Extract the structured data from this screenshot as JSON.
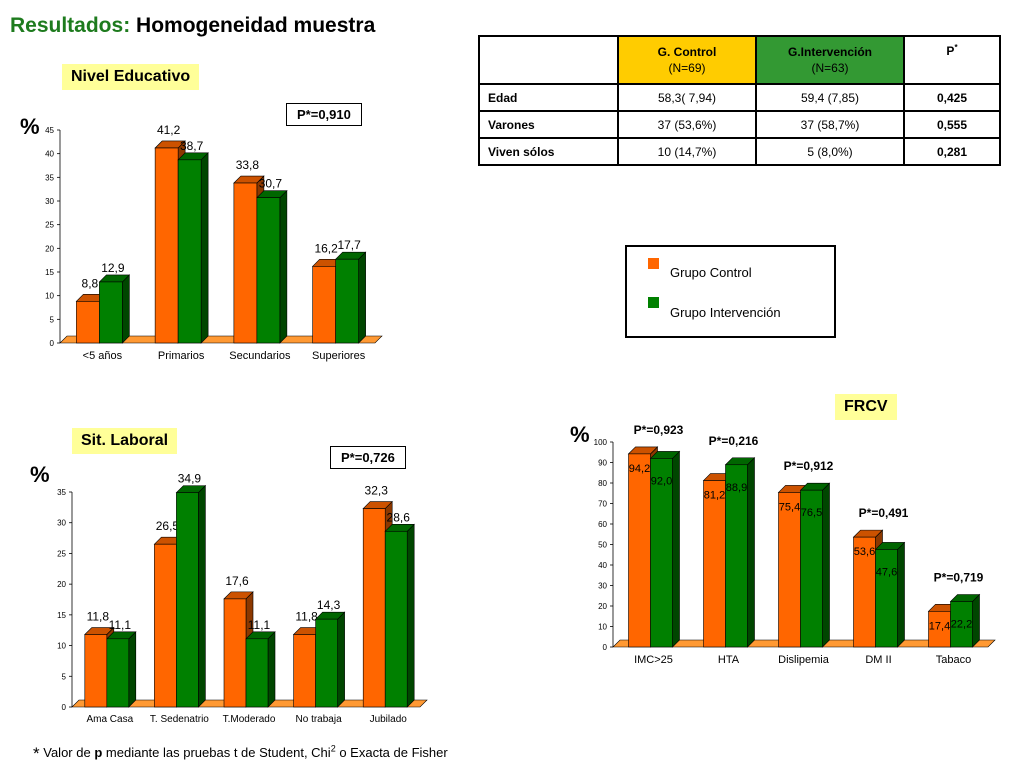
{
  "title": {
    "main": "Resultados:",
    "sub": "Homogeneidad muestra"
  },
  "colors": {
    "control": "#ff6600",
    "intervention": "#008000"
  },
  "summary_table": {
    "headers": [
      {
        "name": "G. Control",
        "n": "(N=69)"
      },
      {
        "name": "G.Intervención",
        "n": "(N=63)"
      },
      {
        "name": "P",
        "sup": "*"
      }
    ],
    "rows": [
      {
        "label": "Edad",
        "control": "58,3( 7,94)",
        "intervention": "59,4 (7,85)",
        "p": "0,425"
      },
      {
        "label": "Varones",
        "control": "37 (53,6%)",
        "intervention": "37 (58,7%)",
        "p": "0,555"
      },
      {
        "label": "Viven sólos",
        "control": "10 (14,7%)",
        "intervention": "5 (8,0%)",
        "p": "0,281"
      }
    ]
  },
  "legend": {
    "control": "Grupo Control",
    "intervention": "Grupo Intervención"
  },
  "footnote": {
    "star": "*",
    "pre": "Valor de",
    "p": "p",
    "mid": "mediante las pruebas t de Student, Chi",
    "sup": "2",
    "post": "o Exacta de Fisher"
  },
  "chart_data": [
    {
      "type": "bar",
      "title": "Nivel Educativo",
      "ylabel": "%",
      "p_value": "P*=0,910",
      "categories": [
        "<5 años",
        "Primarios",
        "Secundarios",
        "Superiores"
      ],
      "ylim": [
        0,
        45
      ],
      "yticks": [
        "0",
        "5",
        "10",
        "15",
        "20",
        "25",
        "30",
        "35",
        "40",
        "45"
      ],
      "series": [
        {
          "values": [
            8.8,
            41.2,
            33.8,
            16.2
          ],
          "labels": [
            "8,8",
            "41,2",
            "33,8",
            "16,2"
          ]
        },
        {
          "values": [
            12.9,
            38.7,
            30.7,
            17.7
          ],
          "labels": [
            "12,9",
            "38,7",
            "30,7",
            "17,7"
          ]
        }
      ]
    },
    {
      "type": "bar",
      "title": "Sit. Laboral",
      "ylabel": "%",
      "p_value": "P*=0,726",
      "categories": [
        "Ama Casa",
        "T. Sedenatrio",
        "T.Moderado",
        "No trabaja",
        "Jubilado"
      ],
      "ylim": [
        0,
        35
      ],
      "yticks": [
        "0",
        "5",
        "10",
        "15",
        "20",
        "25",
        "30",
        "35"
      ],
      "series": [
        {
          "values": [
            11.8,
            26.5,
            17.6,
            11.8,
            32.3
          ],
          "labels": [
            "11,8",
            "26,5",
            "17,6",
            "11,8",
            "32,3"
          ]
        },
        {
          "values": [
            11.1,
            34.9,
            11.1,
            14.3,
            28.6
          ],
          "labels": [
            "11,1",
            "34,9",
            "11,1",
            "14,3",
            "28,6"
          ]
        }
      ]
    },
    {
      "type": "bar",
      "title": "FRCV",
      "ylabel": "%",
      "categories": [
        "IMC>25",
        "HTA",
        "Dislipemia",
        "DM II",
        "Tabaco"
      ],
      "p_values": [
        "P*=0,923",
        "P*=0,216",
        "P*=0,912",
        "P*=0,491",
        "P*=0,719"
      ],
      "ylim": [
        0,
        100
      ],
      "yticks": [
        "0",
        "10",
        "20",
        "30",
        "40",
        "50",
        "60",
        "70",
        "80",
        "90",
        "100"
      ],
      "series": [
        {
          "values": [
            94.2,
            81.2,
            75.4,
            53.6,
            17.4
          ],
          "labels": [
            "94,2",
            "81,2",
            "75,4",
            "53,6",
            "17,4"
          ]
        },
        {
          "values": [
            92.0,
            88.9,
            76.5,
            47.6,
            22.2
          ],
          "labels": [
            "92,0",
            "88,9",
            "76,5",
            "47,6",
            "22,2"
          ]
        }
      ]
    }
  ]
}
